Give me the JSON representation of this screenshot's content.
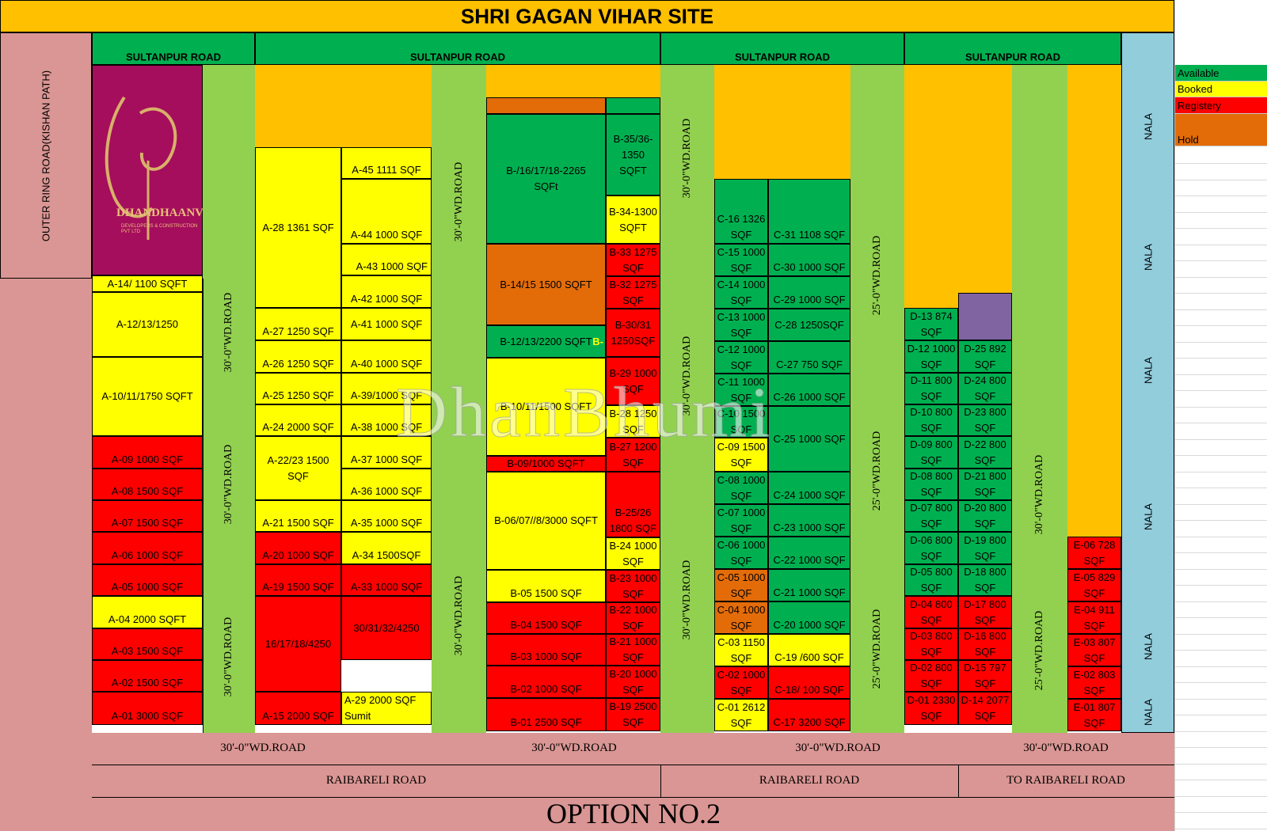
{
  "title": "SHRI GAGAN VIHAR SITE",
  "option_label": "OPTION NO.2",
  "watermark": "DhanBhumi",
  "logo": {
    "name": "DHANDHAANVI",
    "sub": "DEVELOPERS & CONSTRUCTION PVT LTD"
  },
  "colors": {
    "available": "#00b050",
    "booked": "#ffff00",
    "registery": "#ff0000",
    "hold": "#e36c09",
    "road_green": "#92d050",
    "orange_area": "#ffc000",
    "nala": "#92cddc",
    "pink": "#da9694",
    "header_green": "#00b050",
    "title_bg": "#ffc000",
    "purple": "#8064a2",
    "logo_bg": "#a50e5c"
  },
  "roads": {
    "sultanpur": "SULTANPUR ROAD",
    "outer_ring": "OUTER RING ROAD(KISHAN PATH)",
    "wd30": "30'-0\"WD.ROAD",
    "wd25": "25'-0\"WD.ROAD",
    "raibareli": "RAIBARELI ROAD",
    "to_raibareli": "TO RAIBARELI ROAD",
    "nala": "NALA"
  },
  "legend": [
    {
      "label": "Available",
      "status": "available"
    },
    {
      "label": "Booked",
      "status": "booked"
    },
    {
      "label": "Registery",
      "status": "registery"
    },
    {
      "label": "Hold",
      "status": "hold"
    }
  ],
  "plots": {
    "a14": "A-14/ 1100 SQFT",
    "a121313": "A-12/13/1250",
    "a101117": "A-10/11/1750 SQFT",
    "a09": "A-09 1000 SQF",
    "a08": "A-08 1500 SQF",
    "a07": "A-07 1500 SQF",
    "a06": "A-06 1000 SQF",
    "a05": "A-05 1000 SQF",
    "a04": "A-04 2000 SQFT",
    "a03": "A-03 1500 SQF",
    "a02": "A-02 1500 SQF",
    "a01": "A-01 3000 SQF",
    "a28": "A-28 1361 SQF",
    "a27": "A-27 1250 SQF",
    "a26": "A-26 1250 SQF",
    "a25": "A-25 1250 SQF",
    "a24": "A-24 2000 SQF",
    "a2223a": "A-22/23 1500",
    "a2223b": "SQF",
    "a21": "A-21 1500 SQF",
    "a20": "A-20 1000 SQF",
    "a19": "A-19 1500 SQF",
    "a161718": "16/17/18/4250",
    "a15": "A-15 2000 SQF",
    "a45": "A-45 1111 SQF",
    "a44": "A-44 1000 SQF",
    "a43": "A-43 1000 SQF",
    "a42": "A-42 1000 SQF",
    "a41": "A-41 1000 SQF",
    "a40": "A-40 1000 SQF",
    "a39": "A-39/1000 SQF",
    "a38": "A-38 1000 SQF",
    "a37": "A-37 1000 SQF",
    "a36": "A-36 1000 SQF",
    "a35": "A-35 1000 SQF",
    "a34": "A-34 1500SQF",
    "a33": "A-33 1000 SQF",
    "a30313232": "30/31/32/4250",
    "a29": "A-29 2000 SQF",
    "a29b": "Sumit",
    "b161718a": "B-/16/17/18-2265",
    "b161718b": "SQFt",
    "b1415": "B-14/15 1500 SQFT",
    "b1213": "B-12/13/2200 SQFT",
    "b1213tag": "B-",
    "b1011": "B-10/11/1500 SQFT",
    "b09": "B-09/1000 SQFT",
    "b060708": "B-06/07//8/3000 SQFT",
    "b05": "B-05 1500 SQF",
    "b04": "B-04 1500 SQF",
    "b03": "B-03 1000 SQF",
    "b02": "B-02 1000 SQF",
    "b01": "B-01 2500 SQF",
    "b3536": "B-35/36-1350 SQFT",
    "b34": "B-34-1300 SQFT",
    "b33": "B-33 1275 SQF",
    "b32": "B-32 1275 SQF",
    "b3031": "B-30/31 1250SQF",
    "b29": "B-29 1000 SQF",
    "b28": "B-28 1250 SQF",
    "b27": "B-27 1200 SQF",
    "b2526": "B-25/26 1800 SQF",
    "b24": "B-24 1000 SQF",
    "b23": "B-23 1000 SQF",
    "b22": "B-22 1000 SQF",
    "b21": "B-21 1000 SQF",
    "b20": "B-20 1000 SQF",
    "b19": "B-19 2500 SQF",
    "c16": "C-16 1326 SQF",
    "c15": "C-15 1000 SQF",
    "c14": "C-14 1000 SQF",
    "c13": "C-13 1000 SQF",
    "c12": "C-12 1000 SQF",
    "c11": "C-11 1000 SQF",
    "c10": "C-10 1500 SQF",
    "c09": "C-09 1500 SQF",
    "c08": "C-08 1000 SQF",
    "c07": "C-07 1000 SQF",
    "c06": "C-06 1000 SQF",
    "c05": "C-05 1000 SQF",
    "c04": "C-04 1000 SQF",
    "c03": "C-03 1150 SQF",
    "c02": "C-02 1000 SQF",
    "c01": "C-01 2612 SQF",
    "c31": "C-31 1108 SQF",
    "c30": "C-30 1000 SQF",
    "c29": "C-29 1000 SQF",
    "c28": "C-28 1250SQF",
    "c27": "C-27 750 SQF",
    "c26": "C-26 1000 SQF",
    "c25": "C-25 1000 SQF",
    "c24": "C-24 1000 SQF",
    "c23": "C-23 1000 SQF",
    "c22": "C-22 1000 SQF",
    "c21": "C-21 1000 SQF",
    "c20": "C-20 1000 SQF",
    "c19": "C-19 /600 SQF",
    "c18": "C-18/ 100 SQF",
    "c17": "C-17 3200 SQF",
    "d13": "D-13 874 SQF",
    "d12": "D-12 1000 SQF",
    "d11": "D-11 800 SQF",
    "d10": "D-10 800 SQF",
    "d09": "D-09 800 SQF",
    "d08": "D-08 800 SQF",
    "d07": "D-07 800 SQF",
    "d06": "D-06 800 SQF",
    "d05": "D-05 800 SQF",
    "d04": "D-04 800 SQF",
    "d03": "D-03 800 SQF",
    "d02": "D-02 800 SQF",
    "d01": "D-01 2330 SQF",
    "d25": "D-25 892 SQF",
    "d24": "D-24 800 SQF",
    "d23": "D-23 800 SQF",
    "d22": "D-22 800 SQF",
    "d21": "D-21 800 SQF",
    "d20": "D-20 800 SQF",
    "d19": "D-19 800 SQF",
    "d18": "D-18 800 SQF",
    "d17": "D-17 800 SQF",
    "d16": "D-16 800 SQF",
    "d15": "D-15 797 SQF",
    "d14": "D-14 2077 SQF",
    "e06": "E-06 728 SQF",
    "e05": "E-05 829 SQF",
    "e04": "E-04 911 SQF",
    "e03": "E-03 807 SQF",
    "e02": "E-02 803 SQF",
    "e01": "E-01 807 SQF"
  }
}
